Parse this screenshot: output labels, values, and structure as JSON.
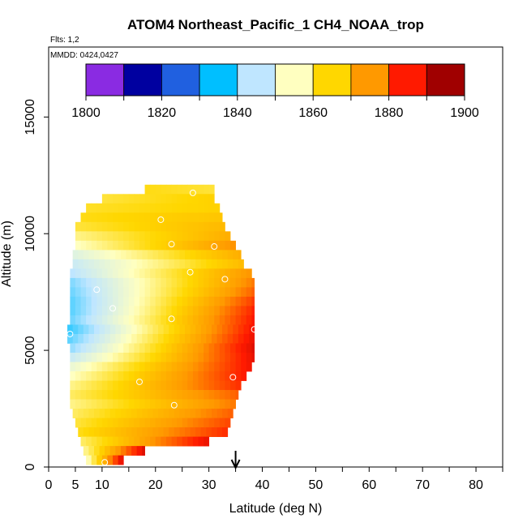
{
  "chart_data": {
    "type": "heatmap",
    "title": "ATOM4 Northeast_Pacific_1 CH4_NOAA_trop",
    "flights_note": "Flts: 1,2",
    "dates_note": "MMDD: 0424,0427",
    "xlabel": "Latitude (deg N)",
    "ylabel": "Altitude (m)",
    "xlim": [
      0,
      85
    ],
    "ylim": [
      0,
      18000
    ],
    "x_ticks": [
      0,
      5,
      10,
      20,
      30,
      40,
      50,
      60,
      70,
      80
    ],
    "y_ticks": [
      0,
      5000,
      10000,
      15000
    ],
    "colorbar": {
      "min": 1800,
      "max": 1900,
      "tick_values": [
        1800,
        1820,
        1840,
        1860,
        1880,
        1900
      ],
      "bins": [
        {
          "value": 1805,
          "color": "#8a2be2"
        },
        {
          "value": 1815,
          "color": "#0000a0"
        },
        {
          "value": 1825,
          "color": "#2060e0"
        },
        {
          "value": 1835,
          "color": "#00bfff"
        },
        {
          "value": 1845,
          "color": "#bfe6ff"
        },
        {
          "value": 1855,
          "color": "#ffffc0"
        },
        {
          "value": 1865,
          "color": "#ffd700"
        },
        {
          "value": 1875,
          "color": "#ff9900"
        },
        {
          "value": 1885,
          "color": "#ff1a00"
        },
        {
          "value": 1895,
          "color": "#a00000"
        }
      ]
    },
    "rows": [
      {
        "alt": 11900,
        "lat_min": 18.0,
        "lat_max": 31.0,
        "v_start": 1864,
        "v_end": 1862
      },
      {
        "alt": 11500,
        "lat_min": 10.0,
        "lat_max": 31.0,
        "v_start": 1862,
        "v_end": 1866
      },
      {
        "alt": 11100,
        "lat_min": 7.0,
        "lat_max": 32.0,
        "v_start": 1863,
        "v_end": 1866
      },
      {
        "alt": 10700,
        "lat_min": 6.0,
        "lat_max": 32.5,
        "v_start": 1864,
        "v_end": 1868
      },
      {
        "alt": 10300,
        "lat_min": 5.0,
        "lat_max": 33.0,
        "v_start": 1862,
        "v_end": 1870
      },
      {
        "alt": 9900,
        "lat_min": 5.0,
        "lat_max": 34.0,
        "v_start": 1858,
        "v_end": 1872
      },
      {
        "alt": 9500,
        "lat_min": 5.0,
        "lat_max": 35.0,
        "v_start": 1855,
        "v_end": 1876
      },
      {
        "alt": 9100,
        "lat_min": 4.5,
        "lat_max": 36.0,
        "v_start": 1850,
        "v_end": 1872
      },
      {
        "alt": 8700,
        "lat_min": 4.5,
        "lat_max": 36.5,
        "v_start": 1847,
        "v_end": 1870
      },
      {
        "alt": 8300,
        "lat_min": 4.0,
        "lat_max": 38.0,
        "v_start": 1845,
        "v_end": 1876
      },
      {
        "alt": 7900,
        "lat_min": 4.0,
        "lat_max": 38.5,
        "v_start": 1842,
        "v_end": 1878
      },
      {
        "alt": 7500,
        "lat_min": 4.0,
        "lat_max": 38.5,
        "v_start": 1841,
        "v_end": 1880
      },
      {
        "alt": 7100,
        "lat_min": 4.0,
        "lat_max": 38.5,
        "v_start": 1840,
        "v_end": 1883
      },
      {
        "alt": 6700,
        "lat_min": 4.0,
        "lat_max": 38.5,
        "v_start": 1840,
        "v_end": 1885
      },
      {
        "alt": 6300,
        "lat_min": 4.0,
        "lat_max": 38.5,
        "v_start": 1841,
        "v_end": 1886
      },
      {
        "alt": 5900,
        "lat_min": 3.5,
        "lat_max": 38.5,
        "v_start": 1838,
        "v_end": 1887
      },
      {
        "alt": 5500,
        "lat_min": 3.5,
        "lat_max": 38.5,
        "v_start": 1840,
        "v_end": 1888
      },
      {
        "alt": 5100,
        "lat_min": 4.0,
        "lat_max": 38.5,
        "v_start": 1843,
        "v_end": 1889
      },
      {
        "alt": 4700,
        "lat_min": 4.0,
        "lat_max": 38.5,
        "v_start": 1847,
        "v_end": 1888
      },
      {
        "alt": 4300,
        "lat_min": 4.0,
        "lat_max": 38.0,
        "v_start": 1852,
        "v_end": 1887
      },
      {
        "alt": 3900,
        "lat_min": 4.0,
        "lat_max": 37.0,
        "v_start": 1855,
        "v_end": 1886
      },
      {
        "alt": 3500,
        "lat_min": 4.0,
        "lat_max": 36.0,
        "v_start": 1858,
        "v_end": 1884
      },
      {
        "alt": 3100,
        "lat_min": 4.0,
        "lat_max": 35.5,
        "v_start": 1860,
        "v_end": 1880
      },
      {
        "alt": 2700,
        "lat_min": 4.0,
        "lat_max": 35.0,
        "v_start": 1858,
        "v_end": 1878
      },
      {
        "alt": 2300,
        "lat_min": 4.5,
        "lat_max": 34.5,
        "v_start": 1860,
        "v_end": 1880
      },
      {
        "alt": 1900,
        "lat_min": 5.0,
        "lat_max": 34.0,
        "v_start": 1862,
        "v_end": 1882
      },
      {
        "alt": 1500,
        "lat_min": 5.5,
        "lat_max": 33.5,
        "v_start": 1864,
        "v_end": 1884
      },
      {
        "alt": 1100,
        "lat_min": 6.0,
        "lat_max": 30.0,
        "v_start": 1860,
        "v_end": 1888
      },
      {
        "alt": 700,
        "lat_min": 6.5,
        "lat_max": 18.0,
        "v_start": 1858,
        "v_end": 1890
      },
      {
        "alt": 300,
        "lat_min": 7.0,
        "lat_max": 14.0,
        "v_start": 1856,
        "v_end": 1892
      }
    ],
    "sample_points": [
      {
        "lat": 27.0,
        "alt": 11750
      },
      {
        "lat": 21.0,
        "alt": 10600
      },
      {
        "lat": 23.0,
        "alt": 9550
      },
      {
        "lat": 31.0,
        "alt": 9450
      },
      {
        "lat": 26.5,
        "alt": 8350
      },
      {
        "lat": 33.0,
        "alt": 8050
      },
      {
        "lat": 9.0,
        "alt": 7600
      },
      {
        "lat": 12.0,
        "alt": 6800
      },
      {
        "lat": 23.0,
        "alt": 6350
      },
      {
        "lat": 38.5,
        "alt": 5900
      },
      {
        "lat": 4.0,
        "alt": 5700
      },
      {
        "lat": 34.5,
        "alt": 3850
      },
      {
        "lat": 17.0,
        "alt": 3650
      },
      {
        "lat": 23.5,
        "alt": 2650
      },
      {
        "lat": 10.5,
        "alt": 200
      }
    ],
    "marker_arrow": {
      "lat": 35.0
    }
  }
}
